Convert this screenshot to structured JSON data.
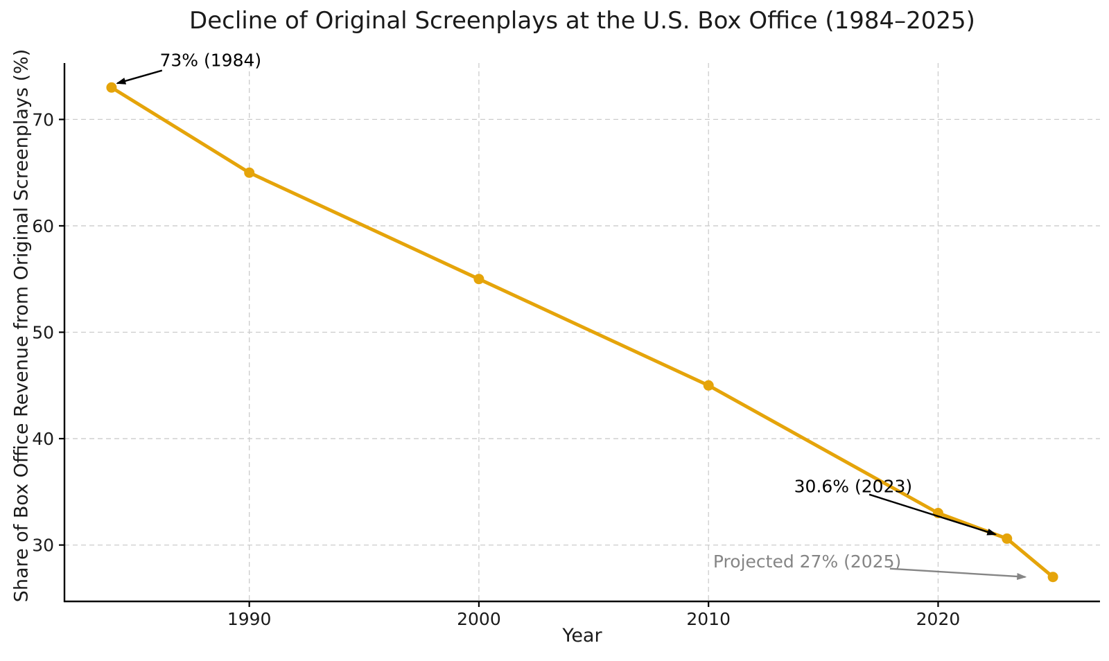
{
  "chart_data": {
    "type": "line",
    "title": "Decline of Original Screenplays at the U.S. Box Office (1984–2025)",
    "xlabel": "Year",
    "ylabel": "Share of Box Office Revenue from Original Screenplays (%)",
    "x": [
      1984,
      1990,
      2000,
      2010,
      2020,
      2023,
      2025
    ],
    "values": [
      73,
      65,
      55,
      45,
      33,
      30.6,
      27
    ],
    "xlim": [
      1981.95,
      2027.05
    ],
    "ylim": [
      24.7,
      75.3
    ],
    "xticks": [
      1990,
      2000,
      2010,
      2020
    ],
    "yticks": [
      30,
      40,
      50,
      60,
      70
    ],
    "grid": true,
    "grid_style": "dashed",
    "legend_position": "none",
    "line_color": "#E5A40A",
    "marker": "circle",
    "marker_radius": 7.5,
    "annotations": [
      {
        "text": "73% (1984)",
        "color": "#000000",
        "anchor": "start",
        "text_x": 1986.1,
        "text_y": 75.0,
        "arrow": {
          "x1": 1986.2,
          "y1": 74.6,
          "x2": 1984.25,
          "y2": 73.4
        }
      },
      {
        "text": "30.6% (2023)",
        "color": "#000000",
        "anchor": "middle",
        "text_x": 2016.3,
        "text_y": 34.95,
        "arrow": {
          "x1": 2017.0,
          "y1": 34.75,
          "x2": 2022.5,
          "y2": 31.0
        }
      },
      {
        "text": "Projected 27% (2025)",
        "color": "#858585",
        "anchor": "middle",
        "text_x": 2014.3,
        "text_y": 27.9,
        "arrow": {
          "x1": 2017.9,
          "y1": 27.78,
          "x2": 2023.8,
          "y2": 27.0
        }
      }
    ],
    "colors": {
      "background": "#ffffff",
      "grid": "#cccccc",
      "spine": "#000000",
      "text": "#1a1a1a",
      "accent_orange": "#E5A40A",
      "annotation_gray": "#858585"
    }
  }
}
